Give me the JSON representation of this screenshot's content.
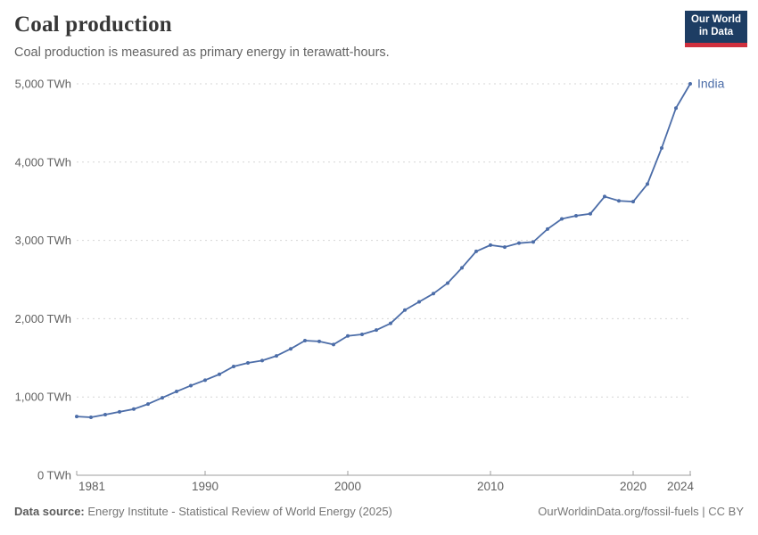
{
  "header": {
    "title": "Coal production",
    "subtitle": "Coal production is measured as primary energy in terawatt-hours."
  },
  "logo": {
    "line1": "Our World",
    "line2": "in Data",
    "bg_color": "#1d3d63",
    "stripe_color": "#cf303e"
  },
  "chart_data": {
    "type": "line",
    "title": "Coal production",
    "unit": "TWh",
    "entity": "India",
    "series": [
      {
        "name": "India",
        "color": "#4c6da8",
        "x": [
          1981,
          1982,
          1983,
          1984,
          1985,
          1986,
          1987,
          1988,
          1989,
          1990,
          1991,
          1992,
          1993,
          1994,
          1995,
          1996,
          1997,
          1998,
          1999,
          2000,
          2001,
          2002,
          2003,
          2004,
          2005,
          2006,
          2007,
          2008,
          2009,
          2010,
          2011,
          2012,
          2013,
          2014,
          2015,
          2016,
          2017,
          2018,
          2019,
          2020,
          2021,
          2022,
          2023,
          2024
        ],
        "values": [
          750,
          740,
          775,
          810,
          845,
          910,
          990,
          1070,
          1145,
          1215,
          1290,
          1390,
          1435,
          1465,
          1525,
          1615,
          1720,
          1710,
          1670,
          1780,
          1800,
          1855,
          1940,
          2110,
          2215,
          2320,
          2455,
          2650,
          2860,
          2940,
          2915,
          2965,
          2980,
          3145,
          3275,
          3315,
          3340,
          3560,
          3505,
          3495,
          3720,
          4180,
          4690,
          5000
        ]
      }
    ],
    "xlim": [
      1981,
      2024
    ],
    "ylim": [
      0,
      5000
    ],
    "x_ticks": [
      {
        "value": 1981,
        "label": "1981"
      },
      {
        "value": 1990,
        "label": "1990"
      },
      {
        "value": 2000,
        "label": "2000"
      },
      {
        "value": 2010,
        "label": "2010"
      },
      {
        "value": 2020,
        "label": "2020"
      },
      {
        "value": 2024,
        "label": "2024"
      }
    ],
    "y_ticks": [
      {
        "value": 0,
        "label": "0 TWh"
      },
      {
        "value": 1000,
        "label": "1,000 TWh"
      },
      {
        "value": 2000,
        "label": "2,000 TWh"
      },
      {
        "value": 3000,
        "label": "3,000 TWh"
      },
      {
        "value": 4000,
        "label": "4,000 TWh"
      },
      {
        "value": 5000,
        "label": "5,000 TWh"
      }
    ],
    "grid": true,
    "legend_position": "end-of-line",
    "colors": {
      "line": "#4c6da8",
      "entity_label": "#4c6da8",
      "gridline": "#d6d6d6",
      "axis": "#9e9e9e",
      "tick_label": "#616161"
    }
  },
  "footer": {
    "source_label": "Data source:",
    "source_text": " Energy Institute - Statistical Review of World Energy (2025)",
    "right_text": "OurWorldinData.org/fossil-fuels | CC BY"
  }
}
